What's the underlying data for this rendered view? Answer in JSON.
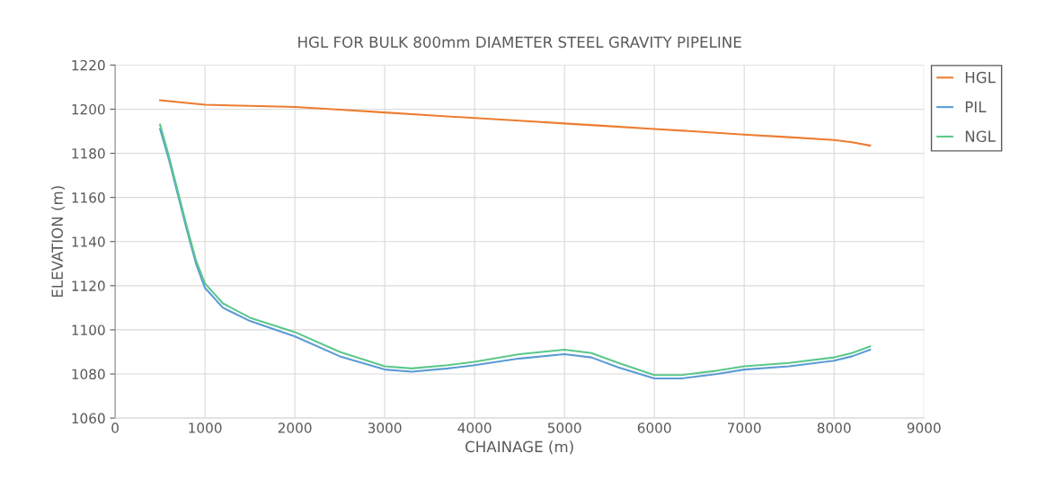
{
  "chart_data": {
    "type": "line",
    "title": "HGL FOR BULK 800mm DIAMETER STEEL GRAVITY PIPELINE",
    "xlabel": "CHAINAGE (m)",
    "ylabel": "ELEVATION (m)",
    "xlim": [
      0,
      9000
    ],
    "xticks": [
      0,
      1000,
      2000,
      3000,
      4000,
      5000,
      6000,
      7000,
      8000,
      9000
    ],
    "ylim": [
      1060,
      1220
    ],
    "yticks": [
      1060,
      1080,
      1100,
      1120,
      1140,
      1160,
      1180,
      1200,
      1220
    ],
    "grid": true,
    "legend": "top right",
    "marker": "none",
    "line_style": "solid",
    "series": [
      {
        "name": "HGL",
        "color": "#ed7d31",
        "x": [
          500,
          1000,
          1500,
          2000,
          2500,
          3000,
          3500,
          4000,
          4500,
          5000,
          5500,
          6000,
          6500,
          7000,
          7500,
          8000,
          8200,
          8400
        ],
        "values": [
          1204,
          1202,
          1201.5,
          1201,
          1199.8,
          1198.5,
          1197.2,
          1196,
          1194.8,
          1193.5,
          1192.3,
          1191,
          1189.8,
          1188.5,
          1187.3,
          1186,
          1185,
          1183.5
        ]
      },
      {
        "name": "PIL",
        "color": "#5b9bd5",
        "x": [
          500,
          600,
          700,
          800,
          900,
          1000,
          1200,
          1500,
          2000,
          2500,
          3000,
          3300,
          3700,
          4000,
          4500,
          5000,
          5300,
          5600,
          6000,
          6300,
          6700,
          7000,
          7500,
          8000,
          8200,
          8400
        ],
        "values": [
          1191,
          1177,
          1161,
          1145,
          1130,
          1119,
          1110,
          1104,
          1097,
          1088,
          1082,
          1081,
          1082.5,
          1084,
          1087,
          1089,
          1087.5,
          1083,
          1078,
          1078,
          1080,
          1082,
          1083.5,
          1086,
          1088,
          1091
        ]
      },
      {
        "name": "NGL",
        "color": "#5bc88a",
        "x": [
          500,
          600,
          700,
          800,
          900,
          1000,
          1200,
          1500,
          2000,
          2500,
          3000,
          3300,
          3700,
          4000,
          4500,
          5000,
          5300,
          5600,
          6000,
          6300,
          6700,
          7000,
          7500,
          8000,
          8200,
          8400
        ],
        "values": [
          1193,
          1178.5,
          1162.5,
          1146.5,
          1131.5,
          1121,
          1112,
          1105.5,
          1099,
          1090,
          1083.5,
          1082.5,
          1084,
          1085.5,
          1089,
          1091,
          1089.5,
          1085,
          1079.5,
          1079.5,
          1081.5,
          1083.5,
          1085,
          1087.5,
          1089.5,
          1092.5
        ]
      }
    ]
  }
}
